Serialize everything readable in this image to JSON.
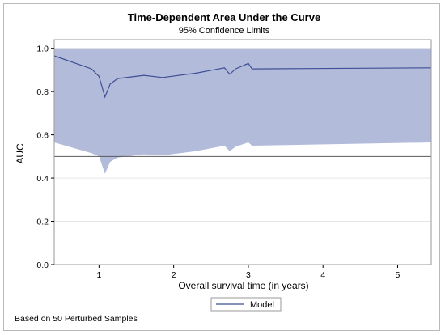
{
  "chart_data": {
    "type": "line",
    "title": "Time-Dependent Area Under the Curve",
    "subtitle": "95% Confidence Limits",
    "xlabel": "Overall survival time (in years)",
    "ylabel": "AUC",
    "xlim": [
      0.4,
      5.45
    ],
    "ylim": [
      0.0,
      1.04
    ],
    "x_ticks": [
      1,
      2,
      3,
      4,
      5
    ],
    "x_tick_labels": [
      "1",
      "2",
      "3",
      "4",
      "5"
    ],
    "y_ticks": [
      0.0,
      0.2,
      0.4,
      0.6,
      0.8,
      1.0
    ],
    "y_tick_labels": [
      "0.0",
      "0.2",
      "0.4",
      "0.6",
      "0.8",
      "1.0"
    ],
    "grid": "horizontal",
    "reference_line_y": 0.5,
    "legend_position": "bottom-center",
    "footnote": "Based on 50 Perturbed Samples",
    "colors": {
      "line": "#3e4f95",
      "band": "#b3bbda",
      "reference": "#5a5a5a",
      "grid": "#e6e6e6",
      "frame": "#9a9a9a"
    },
    "series": [
      {
        "name": "Model",
        "x": [
          0.4,
          0.9,
          1.0,
          1.08,
          1.15,
          1.25,
          1.6,
          1.85,
          2.3,
          2.68,
          2.75,
          2.83,
          3.0,
          3.05,
          5.45
        ],
        "values": [
          0.965,
          0.905,
          0.87,
          0.775,
          0.835,
          0.86,
          0.875,
          0.865,
          0.885,
          0.91,
          0.88,
          0.905,
          0.93,
          0.905,
          0.91
        ]
      }
    ],
    "confidence_band": {
      "x": [
        0.4,
        0.9,
        1.0,
        1.08,
        1.15,
        1.25,
        1.6,
        1.85,
        2.3,
        2.68,
        2.75,
        2.83,
        3.0,
        3.05,
        5.45
      ],
      "lower": [
        0.565,
        0.515,
        0.5,
        0.42,
        0.475,
        0.495,
        0.51,
        0.505,
        0.525,
        0.55,
        0.525,
        0.545,
        0.565,
        0.55,
        0.565
      ],
      "upper": [
        1.0,
        1.0,
        1.0,
        1.0,
        1.0,
        1.0,
        1.0,
        1.0,
        1.0,
        1.0,
        1.0,
        1.0,
        1.0,
        1.0,
        1.0
      ]
    }
  }
}
